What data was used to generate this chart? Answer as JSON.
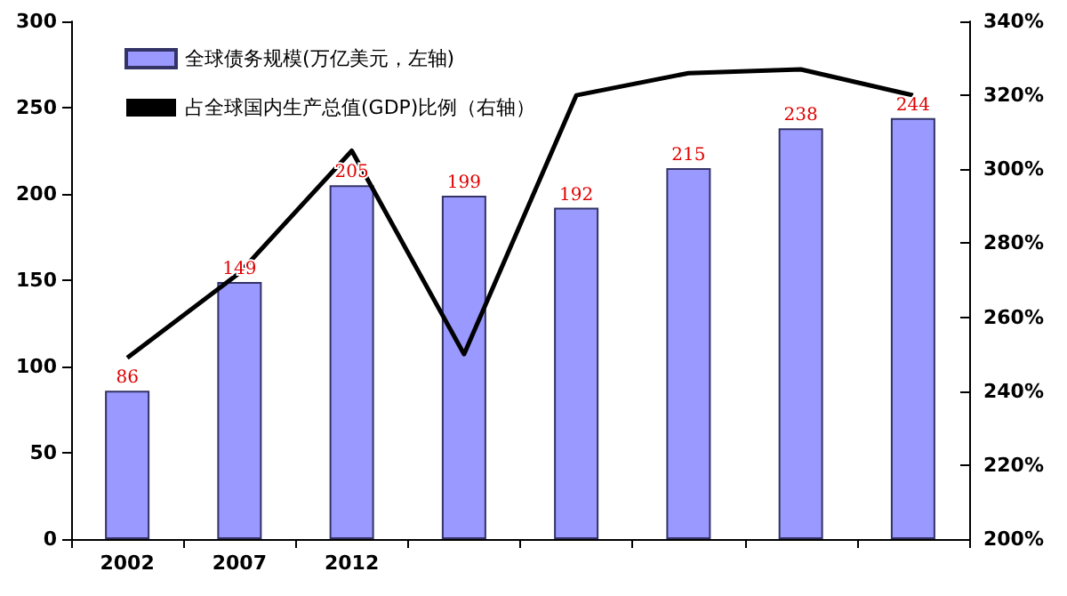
{
  "chart_data": {
    "type": "bar",
    "categories": [
      "2002",
      "2007",
      "2012",
      null,
      null,
      null,
      null,
      null
    ],
    "series": [
      {
        "name": "全球债务规模(万亿美元，左轴)",
        "color": "#9999ff",
        "values": [
          86,
          149,
          205,
          199,
          192,
          215,
          238,
          244
        ],
        "value_labels": [
          "86",
          "149",
          "205",
          "199",
          "192",
          "215",
          "238",
          "244"
        ]
      },
      {
        "name": "占全球国内生产总值(GDP)比例（右轴）",
        "type": "line",
        "axis": "y2",
        "color": "#000000",
        "values": [
          249,
          272,
          305,
          250,
          320,
          326,
          327,
          320
        ]
      }
    ],
    "legend": "top left",
    "grid": false,
    "marker": "none",
    "line_style": "solid",
    "ylim": [
      0,
      300
    ],
    "yticks": [
      0,
      50,
      100,
      150,
      200,
      250,
      300
    ],
    "y2lim": [
      200,
      340
    ],
    "y2ticks": [
      {
        "value": 200,
        "label": "200%"
      },
      {
        "value": 220,
        "label": "220%"
      },
      {
        "value": 240,
        "label": "240%"
      },
      {
        "value": 260,
        "label": "260%"
      },
      {
        "value": 280,
        "label": "280%"
      },
      {
        "value": 300,
        "label": "300%"
      },
      {
        "value": 320,
        "label": "320%"
      },
      {
        "value": 340,
        "label": "340%"
      }
    ]
  }
}
